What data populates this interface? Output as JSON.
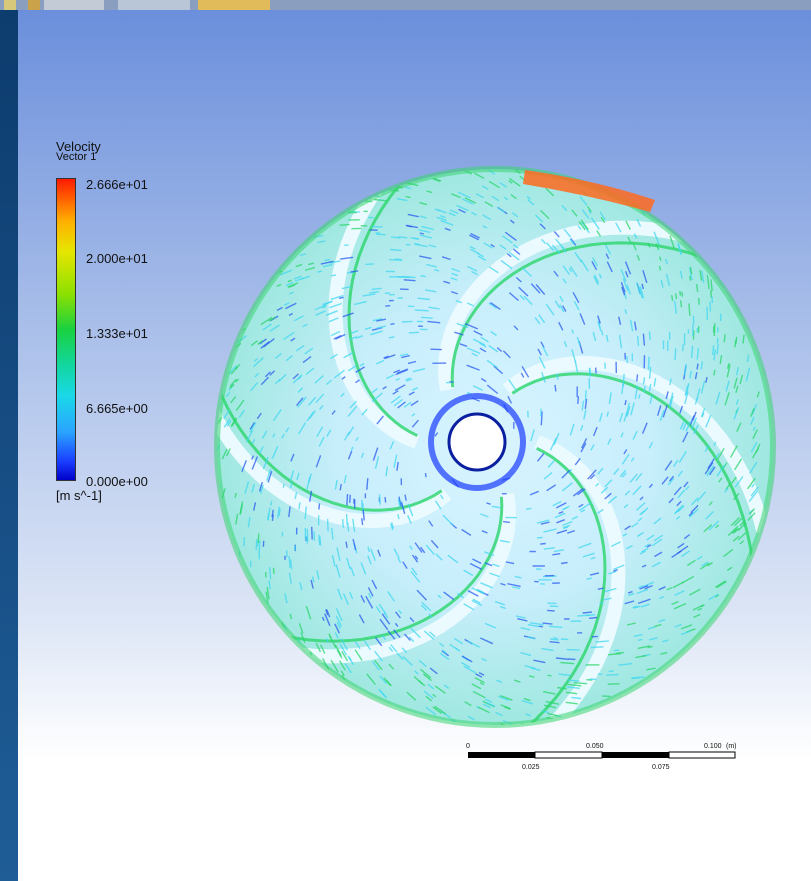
{
  "legend": {
    "title": "Velocity",
    "subtitle": "Vector 1",
    "ticks": [
      "2.666e+01",
      "2.000e+01",
      "1.333e+01",
      "6.665e+00",
      "0.000e+00"
    ],
    "unit": "[m s^-1]",
    "colormap": [
      "#ff1a00",
      "#ffb000",
      "#e6e600",
      "#8ee000",
      "#19d140",
      "#12d6a0",
      "#1ad8e8",
      "#2aa4ff",
      "#1a3cff",
      "#0000c8"
    ]
  },
  "scale_bar": {
    "top_labels": [
      "0",
      "0.050",
      "0.100"
    ],
    "unit": "(m)",
    "bottom_labels": [
      "0.025",
      "0.075"
    ]
  },
  "figure": {
    "content": "impeller-velocity-vectors",
    "blade_count": 6,
    "colors": {
      "background_top": "#6b8fdc",
      "background_bottom": "#ffffff",
      "flow_blue": "#2a5cf0",
      "flow_cyan": "#42d8f0",
      "flow_green": "#2ad66a",
      "flow_red": "#ff3010"
    }
  }
}
